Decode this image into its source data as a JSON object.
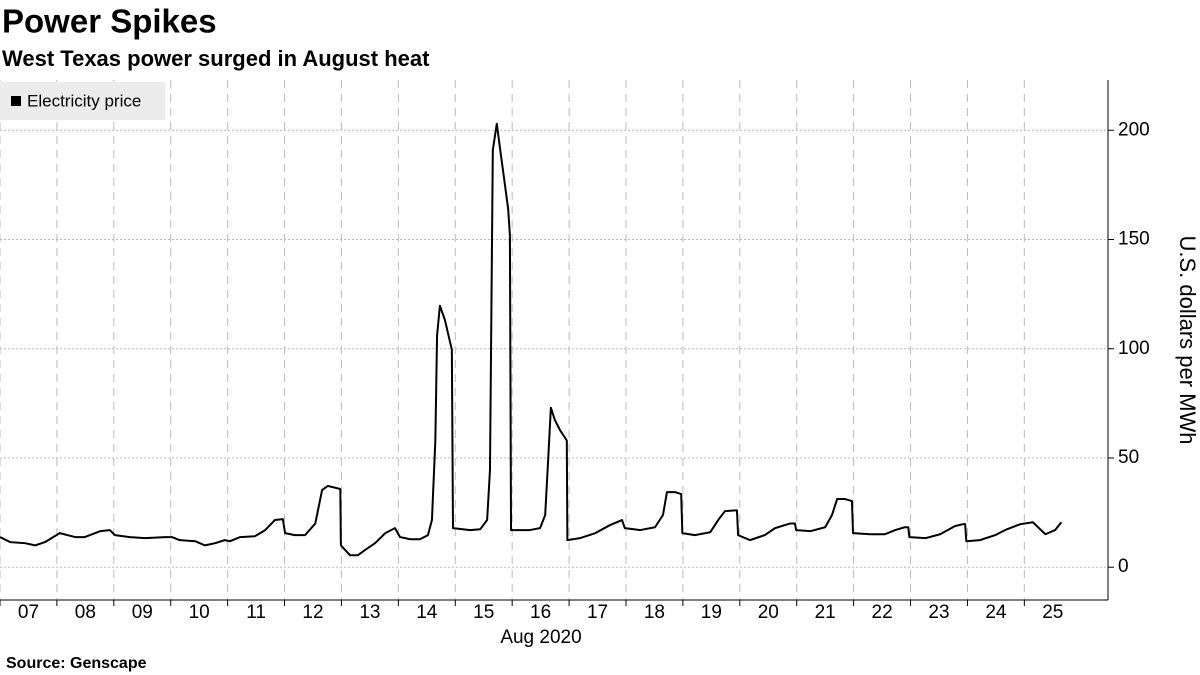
{
  "chart_data": {
    "type": "line",
    "title": "Power Spikes",
    "subtitle": "West Texas power surged in August heat",
    "source": "Source: Genscape",
    "x_label": "Aug 2020",
    "y_label": "U.S. dollars per MWh",
    "legend": "top-left",
    "grid": true,
    "series": [
      {
        "name": "Electricity price",
        "color": "#000000",
        "x": [
          7.0,
          7.18,
          7.44,
          7.62,
          7.79,
          8.05,
          8.32,
          8.49,
          8.76,
          8.93,
          9.02,
          9.28,
          9.55,
          9.9,
          10.02,
          10.16,
          10.43,
          10.6,
          10.78,
          10.95,
          11.04,
          11.22,
          11.48,
          11.66,
          11.83,
          11.97,
          12.01,
          12.18,
          12.36,
          12.54,
          12.66,
          12.76,
          12.98,
          12.99,
          13.15,
          13.29,
          13.41,
          13.59,
          13.77,
          13.94,
          14.03,
          14.21,
          14.38,
          14.52,
          14.59,
          14.65,
          14.68,
          14.73,
          14.82,
          14.94,
          14.96,
          15.26,
          15.44,
          15.56,
          15.61,
          15.66,
          15.73,
          15.79,
          15.86,
          15.93,
          15.96,
          15.98,
          16.31,
          16.49,
          16.58,
          16.63,
          16.68,
          16.75,
          16.84,
          16.96,
          16.97,
          17.19,
          17.46,
          17.72,
          17.93,
          17.98,
          18.25,
          18.51,
          18.65,
          18.72,
          18.86,
          18.97,
          18.99,
          19.21,
          19.48,
          19.62,
          19.74,
          19.92,
          19.95,
          19.97,
          20.18,
          20.44,
          20.62,
          20.88,
          20.97,
          20.99,
          21.24,
          21.5,
          21.62,
          21.71,
          21.85,
          21.97,
          21.99,
          22.29,
          22.55,
          22.73,
          22.9,
          22.96,
          22.98,
          23.26,
          23.52,
          23.78,
          23.92,
          23.96,
          23.98,
          24.22,
          24.49,
          24.66,
          24.93,
          25.15,
          25.37,
          25.54,
          25.65
        ],
        "values": [
          13.8,
          11.5,
          11,
          10,
          11.5,
          15.6,
          13.8,
          13.8,
          16.5,
          17,
          14.7,
          13.8,
          13.3,
          13.8,
          13.8,
          12.4,
          11.9,
          10,
          11,
          12.4,
          11.9,
          13.8,
          14.2,
          17,
          21.6,
          22,
          15.6,
          14.7,
          14.7,
          20,
          35.3,
          37.2,
          35.8,
          10,
          5.5,
          5.5,
          7.8,
          11,
          15.6,
          17.9,
          13.8,
          12.8,
          12.8,
          14.7,
          21.6,
          58,
          106,
          119.7,
          113,
          99.5,
          17.9,
          17,
          17.4,
          21.6,
          44.5,
          191,
          203,
          191,
          177.5,
          163.8,
          152,
          17,
          17,
          17.9,
          23.9,
          48,
          73,
          67.4,
          62.8,
          58,
          12.4,
          13.3,
          15.6,
          19.3,
          21.6,
          17.9,
          17,
          18.3,
          23.9,
          34.4,
          34.4,
          33.5,
          15.6,
          14.7,
          16,
          21.6,
          25.7,
          26,
          26,
          14.7,
          12.4,
          14.7,
          17.9,
          20,
          20,
          17,
          16.5,
          18.3,
          23.9,
          31.2,
          31.2,
          30.3,
          15.6,
          15.1,
          15.1,
          17,
          18.3,
          18.3,
          13.8,
          13.3,
          15.1,
          18.8,
          19.7,
          19.7,
          11.9,
          12.4,
          14.7,
          17,
          19.7,
          20.6,
          15.1,
          17,
          20.6
        ]
      }
    ],
    "xlim": [
      7,
      26.47
    ],
    "xticks": [
      {
        "value": 7,
        "label": "07"
      },
      {
        "value": 8,
        "label": "08"
      },
      {
        "value": 9,
        "label": "09"
      },
      {
        "value": 10,
        "label": "10"
      },
      {
        "value": 11,
        "label": "11"
      },
      {
        "value": 12,
        "label": "12"
      },
      {
        "value": 13,
        "label": "13"
      },
      {
        "value": 14,
        "label": "14"
      },
      {
        "value": 15,
        "label": "15"
      },
      {
        "value": 16,
        "label": "16"
      },
      {
        "value": 17,
        "label": "17"
      },
      {
        "value": 18,
        "label": "18"
      },
      {
        "value": 19,
        "label": "19"
      },
      {
        "value": 20,
        "label": "20"
      },
      {
        "value": 21,
        "label": "21"
      },
      {
        "value": 22,
        "label": "22"
      },
      {
        "value": 23,
        "label": "23"
      },
      {
        "value": 24,
        "label": "24"
      },
      {
        "value": 25,
        "label": "25"
      }
    ],
    "ylim": [
      -15,
      223
    ],
    "yticks": [
      0,
      50,
      100,
      150,
      200
    ]
  }
}
